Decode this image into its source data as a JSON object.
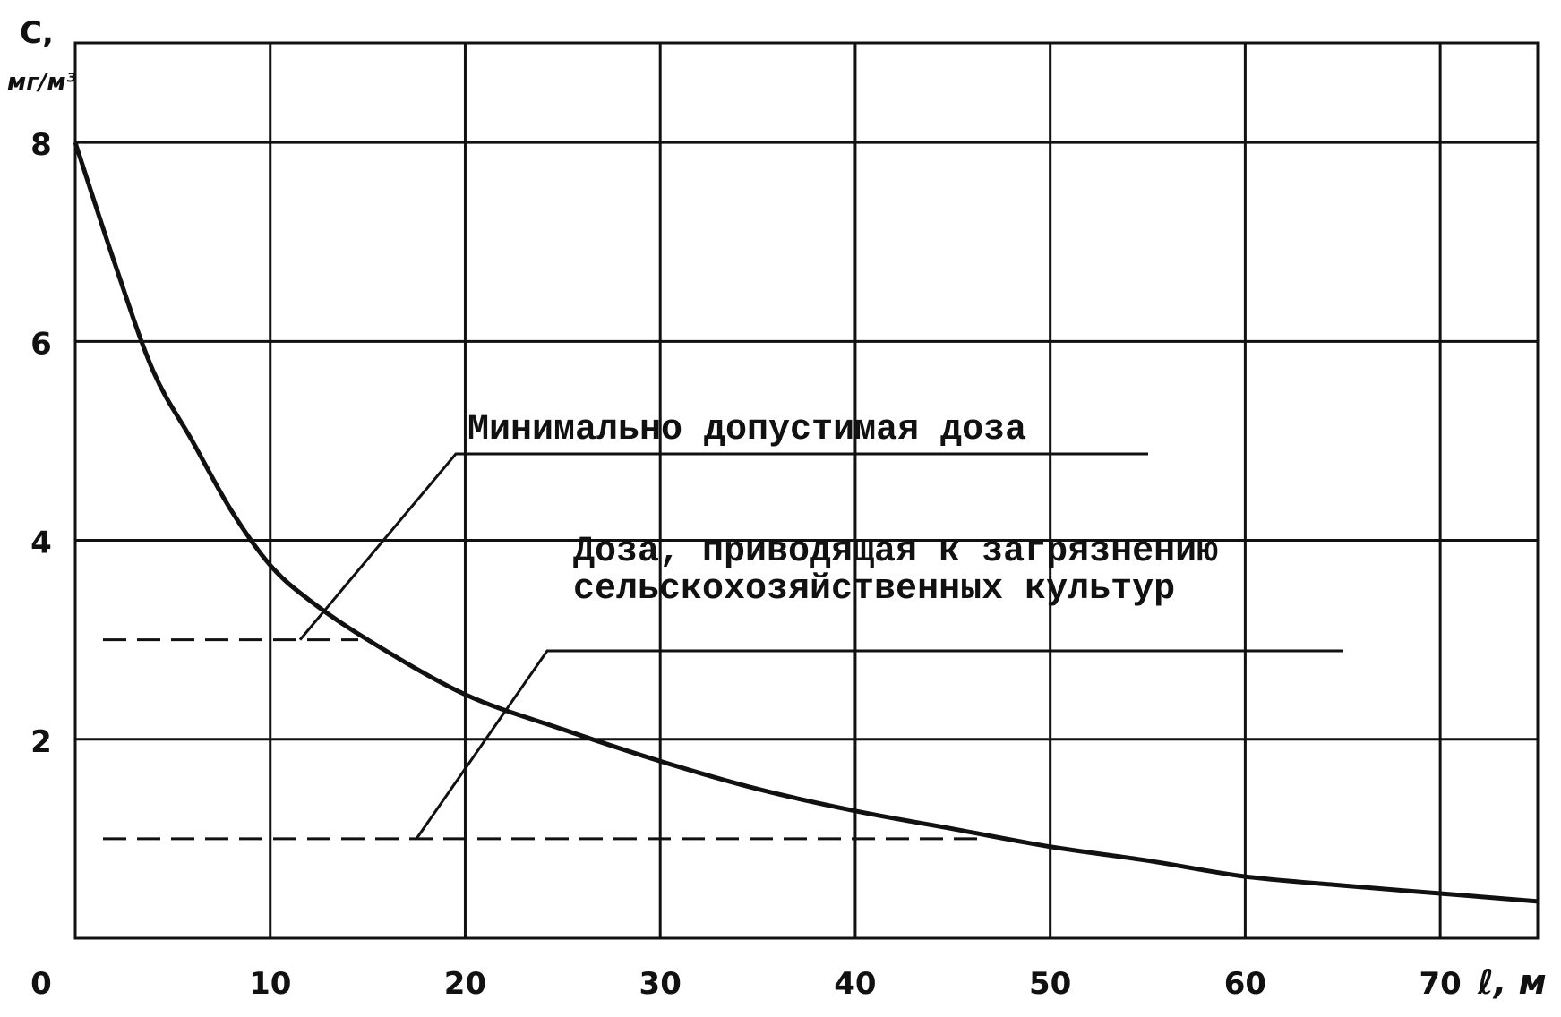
{
  "chart_data": {
    "type": "line",
    "y_label": "C,",
    "y_unit": "мг/м³",
    "x_label": "ℓ, м",
    "x": [
      0,
      2,
      4,
      6,
      8,
      10,
      12,
      15,
      20,
      25,
      30,
      35,
      40,
      45,
      50,
      55,
      60,
      65,
      70,
      75
    ],
    "series": [
      {
        "color": "#111111",
        "values": [
          8,
          6.8,
          5.7,
          5.0,
          4.3,
          3.75,
          3.4,
          3.0,
          2.45,
          2.1,
          1.78,
          1.5,
          1.28,
          1.1,
          0.92,
          0.78,
          0.62,
          0.53,
          0.45,
          0.37
        ]
      }
    ],
    "reference_lines": [
      {
        "value": 3,
        "label": [
          "Минимально допустимая доза"
        ]
      },
      {
        "value": 1,
        "label": [
          "Доза, приводящая к загрязнению",
          "сельскохозяйственных культур"
        ]
      }
    ],
    "xlim": [
      0,
      75
    ],
    "ylim": [
      0,
      9
    ],
    "xticks": [
      0,
      10,
      20,
      30,
      40,
      50,
      60,
      70
    ],
    "yticks": [
      0,
      2,
      4,
      6,
      8
    ],
    "grid": true
  }
}
